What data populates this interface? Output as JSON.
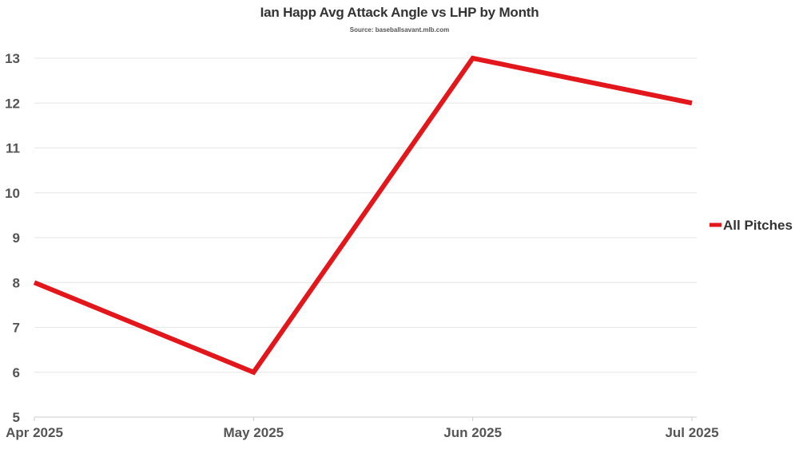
{
  "chart_data": {
    "type": "line",
    "title": "Ian Happ Avg Attack Angle vs LHP by Month",
    "subtitle": "Source: baseballsavant.mlb.com",
    "xlabel": "",
    "ylabel": "",
    "categories": [
      "Apr 2025",
      "May 2025",
      "Jun 2025",
      "Jul 2025"
    ],
    "series": [
      {
        "name": "All Pitches",
        "color": "#e3171b",
        "values": [
          8,
          6,
          13,
          12
        ]
      }
    ],
    "ylim": [
      5,
      13
    ],
    "yticks": [
      5,
      6,
      7,
      8,
      9,
      10,
      11,
      12,
      13
    ],
    "grid": true,
    "legend_position": "right"
  }
}
